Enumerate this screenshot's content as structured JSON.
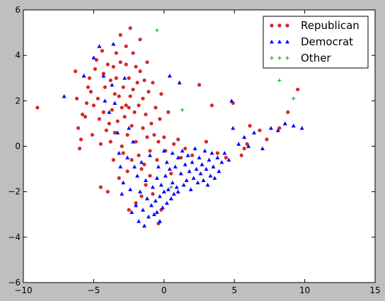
{
  "chart_data": {
    "type": "scatter",
    "title": "",
    "xlabel": "",
    "ylabel": "",
    "xlim": [
      -10,
      15
    ],
    "ylim": [
      -6,
      6
    ],
    "xticks": [
      -10,
      -5,
      0,
      5,
      10,
      15
    ],
    "yticks": [
      -6,
      -4,
      -2,
      0,
      2,
      4,
      6
    ],
    "xtick_labels": [
      "−10",
      "−5",
      "0",
      "5",
      "10",
      "15"
    ],
    "ytick_labels": [
      "−6",
      "−4",
      "−2",
      "0",
      "2",
      "4",
      "6"
    ],
    "grid": false,
    "legend_position": "top-right",
    "series": [
      {
        "name": "Republican",
        "marker": "circle",
        "color": "#d62728",
        "points": [
          [
            -9,
            1.7
          ],
          [
            -6.3,
            3.3
          ],
          [
            -6.2,
            2.1
          ],
          [
            -6.1,
            0.8
          ],
          [
            -6,
            -0.1
          ],
          [
            -5.9,
            0.3
          ],
          [
            -5.8,
            1.4
          ],
          [
            -5.6,
            1.3
          ],
          [
            -5.5,
            1.9
          ],
          [
            -5.4,
            2.6
          ],
          [
            -5.3,
            3.0
          ],
          [
            -5.2,
            2.4
          ],
          [
            -5.1,
            0.5
          ],
          [
            -5.0,
            1.8
          ],
          [
            -4.9,
            3.4
          ],
          [
            -4.8,
            3.8
          ],
          [
            -4.7,
            2.1
          ],
          [
            -4.6,
            1.2
          ],
          [
            -4.5,
            0.1
          ],
          [
            -4.5,
            -1.8
          ],
          [
            -4.4,
            4.2
          ],
          [
            -4.3,
            3.2
          ],
          [
            -4.3,
            1.5
          ],
          [
            -4.2,
            2.6
          ],
          [
            -4.1,
            0.7
          ],
          [
            -4.0,
            3.6
          ],
          [
            -4.0,
            -2.0
          ],
          [
            -3.9,
            1.0
          ],
          [
            -3.8,
            2.9
          ],
          [
            -3.8,
            0.2
          ],
          [
            -3.7,
            1.6
          ],
          [
            -3.6,
            3.5
          ],
          [
            -3.6,
            -0.6
          ],
          [
            -3.5,
            2.3
          ],
          [
            -3.5,
            0.6
          ],
          [
            -3.4,
            4.1
          ],
          [
            -3.4,
            3.0
          ],
          [
            -3.3,
            1.1
          ],
          [
            -3.2,
            2.2
          ],
          [
            -3.2,
            -1.4
          ],
          [
            -3.1,
            4.9
          ],
          [
            -3.1,
            3.7
          ],
          [
            -3.0,
            1.7
          ],
          [
            -3.0,
            0.0
          ],
          [
            -2.9,
            2.6
          ],
          [
            -2.9,
            -0.3
          ],
          [
            -2.8,
            1.3
          ],
          [
            -2.7,
            4.4
          ],
          [
            -2.7,
            3.6
          ],
          [
            -2.7,
            1.8
          ],
          [
            -2.6,
            0.5
          ],
          [
            -2.6,
            -1.1
          ],
          [
            -2.5,
            3.0
          ],
          [
            -2.5,
            1.7
          ],
          [
            -2.5,
            -2.8
          ],
          [
            -2.4,
            5.2
          ],
          [
            -2.4,
            2.2
          ],
          [
            -2.3,
            0.9
          ],
          [
            -2.3,
            -0.6
          ],
          [
            -2.2,
            4.1
          ],
          [
            -2.2,
            2.5
          ],
          [
            -2.1,
            1.5
          ],
          [
            -2.0,
            3.5
          ],
          [
            -2.0,
            0.2
          ],
          [
            -2.0,
            -2.5
          ],
          [
            -1.9,
            2.8
          ],
          [
            -1.8,
            1.8
          ],
          [
            -1.8,
            -0.4
          ],
          [
            -1.7,
            4.7
          ],
          [
            -1.7,
            3.3
          ],
          [
            -1.6,
            -1.0
          ],
          [
            -1.6,
            -2.2
          ],
          [
            -1.5,
            2.1
          ],
          [
            -1.5,
            0.8
          ],
          [
            -1.4,
            2.9
          ],
          [
            -1.4,
            -0.8
          ],
          [
            -1.3,
            1.4
          ],
          [
            -1.3,
            -1.7
          ],
          [
            -1.2,
            3.7
          ],
          [
            -1.2,
            0.4
          ],
          [
            -1.1,
            2.4
          ],
          [
            -1.0,
            -0.2
          ],
          [
            -1.0,
            -1.3
          ],
          [
            -0.9,
            1.0
          ],
          [
            -0.8,
            2.8
          ],
          [
            -0.8,
            -2.1
          ],
          [
            -0.7,
            0.5
          ],
          [
            -0.6,
            1.7
          ],
          [
            -0.5,
            -0.6
          ],
          [
            -0.4,
            0.2
          ],
          [
            -0.4,
            -3.4
          ],
          [
            -0.3,
            1.2
          ],
          [
            -0.2,
            2.3
          ],
          [
            -0.2,
            -2.8
          ],
          [
            0,
            0.4
          ],
          [
            0.1,
            -0.2
          ],
          [
            0.3,
            1.5
          ],
          [
            0.5,
            -1.2
          ],
          [
            0.7,
            0.1
          ],
          [
            1.0,
            0.3
          ],
          [
            1.2,
            -0.5
          ],
          [
            1.5,
            -0.1
          ],
          [
            2.0,
            -0.4
          ],
          [
            2.5,
            2.7
          ],
          [
            3.0,
            0.2
          ],
          [
            3.4,
            1.8
          ],
          [
            3.8,
            -0.3
          ],
          [
            4.4,
            -0.5
          ],
          [
            4.9,
            1.9
          ],
          [
            5.5,
            -0.4
          ],
          [
            5.7,
            -0.1
          ],
          [
            5.9,
            0.1
          ],
          [
            6.1,
            0.9
          ],
          [
            6.8,
            0.7
          ],
          [
            7.3,
            0.3
          ],
          [
            8.2,
            0.8
          ],
          [
            8.8,
            1.5
          ],
          [
            9.5,
            2.5
          ]
        ]
      },
      {
        "name": "Democrat",
        "marker": "triangle",
        "color": "#0000ff",
        "points": [
          [
            -7.1,
            2.2
          ],
          [
            -5.7,
            3.1
          ],
          [
            -5.0,
            3.9
          ],
          [
            -4.6,
            4.4
          ],
          [
            -4.3,
            3.1
          ],
          [
            -4.2,
            2.0
          ],
          [
            -3.9,
            1.5
          ],
          [
            -3.7,
            2.7
          ],
          [
            -3.6,
            4.5
          ],
          [
            -3.5,
            1.9
          ],
          [
            -3.3,
            0.6
          ],
          [
            -3.2,
            -0.3
          ],
          [
            -3.1,
            -0.9
          ],
          [
            -3.0,
            -2.1
          ],
          [
            -2.9,
            -1.6
          ],
          [
            -2.8,
            3.0
          ],
          [
            -2.6,
            -0.5
          ],
          [
            -2.5,
            0.8
          ],
          [
            -2.4,
            -1.9
          ],
          [
            -2.3,
            -2.9
          ],
          [
            -2.2,
            0.2
          ],
          [
            -2.1,
            -0.9
          ],
          [
            -2.0,
            -2.6
          ],
          [
            -1.9,
            -1.3
          ],
          [
            -1.8,
            -3.3
          ],
          [
            -1.7,
            -2.0
          ],
          [
            -1.6,
            -0.7
          ],
          [
            -1.5,
            -2.8
          ],
          [
            -1.4,
            -3.5
          ],
          [
            -1.3,
            -1.5
          ],
          [
            -1.2,
            -2.3
          ],
          [
            -1.1,
            -3.1
          ],
          [
            -1.0,
            -0.4
          ],
          [
            -0.9,
            -2.6
          ],
          [
            -0.8,
            -1.8
          ],
          [
            -0.7,
            -3.0
          ],
          [
            -0.6,
            -2.4
          ],
          [
            -0.5,
            -1.4
          ],
          [
            -0.5,
            -2.9
          ],
          [
            -0.4,
            -0.9
          ],
          [
            -0.3,
            -2.2
          ],
          [
            -0.3,
            -3.3
          ],
          [
            -0.2,
            -1.7
          ],
          [
            -0.1,
            -2.7
          ],
          [
            0,
            -0.2
          ],
          [
            0,
            -2.0
          ],
          [
            0.1,
            -1.3
          ],
          [
            0.2,
            -2.5
          ],
          [
            0.2,
            -0.7
          ],
          [
            0.3,
            -1.9
          ],
          [
            0.4,
            3.1
          ],
          [
            0.4,
            -1.0
          ],
          [
            0.5,
            -2.3
          ],
          [
            0.6,
            -0.3
          ],
          [
            0.6,
            -1.6
          ],
          [
            0.7,
            -2.1
          ],
          [
            0.8,
            -0.9
          ],
          [
            0.9,
            -1.8
          ],
          [
            1.0,
            -0.5
          ],
          [
            1.0,
            -2.0
          ],
          [
            1.1,
            2.8
          ],
          [
            1.2,
            -1.2
          ],
          [
            1.3,
            -0.2
          ],
          [
            1.4,
            -1.7
          ],
          [
            1.5,
            -0.8
          ],
          [
            1.6,
            -1.5
          ],
          [
            1.7,
            -0.4
          ],
          [
            1.8,
            -1.1
          ],
          [
            1.9,
            -1.9
          ],
          [
            2.0,
            -0.7
          ],
          [
            2.1,
            -1.4
          ],
          [
            2.2,
            -0.1
          ],
          [
            2.3,
            -1.0
          ],
          [
            2.4,
            -1.6
          ],
          [
            2.5,
            -0.5
          ],
          [
            2.6,
            -1.2
          ],
          [
            2.7,
            -0.8
          ],
          [
            2.8,
            -1.5
          ],
          [
            2.9,
            -0.2
          ],
          [
            3.0,
            -1.0
          ],
          [
            3.1,
            -1.7
          ],
          [
            3.2,
            -0.6
          ],
          [
            3.3,
            -1.3
          ],
          [
            3.4,
            -0.3
          ],
          [
            3.5,
            -0.9
          ],
          [
            3.6,
            -1.4
          ],
          [
            3.8,
            -0.5
          ],
          [
            3.9,
            -1.1
          ],
          [
            4.1,
            -0.7
          ],
          [
            4.3,
            -0.3
          ],
          [
            4.6,
            -0.6
          ],
          [
            4.8,
            2.0
          ],
          [
            4.9,
            0.8
          ],
          [
            5.3,
            0.1
          ],
          [
            5.7,
            0.4
          ],
          [
            6.0,
            0.0
          ],
          [
            6.4,
            0.6
          ],
          [
            7.0,
            -0.1
          ],
          [
            7.6,
            0.8
          ],
          [
            8.1,
            0.7
          ],
          [
            8.6,
            1.0
          ],
          [
            9.2,
            0.9
          ],
          [
            9.8,
            0.8
          ]
        ]
      },
      {
        "name": "Other",
        "marker": "plus",
        "color": "#00a000",
        "points": [
          [
            -0.5,
            5.1
          ],
          [
            1.3,
            1.6
          ],
          [
            0.5,
            -1.8
          ],
          [
            8.2,
            2.9
          ],
          [
            9.2,
            2.1
          ]
        ]
      }
    ]
  }
}
